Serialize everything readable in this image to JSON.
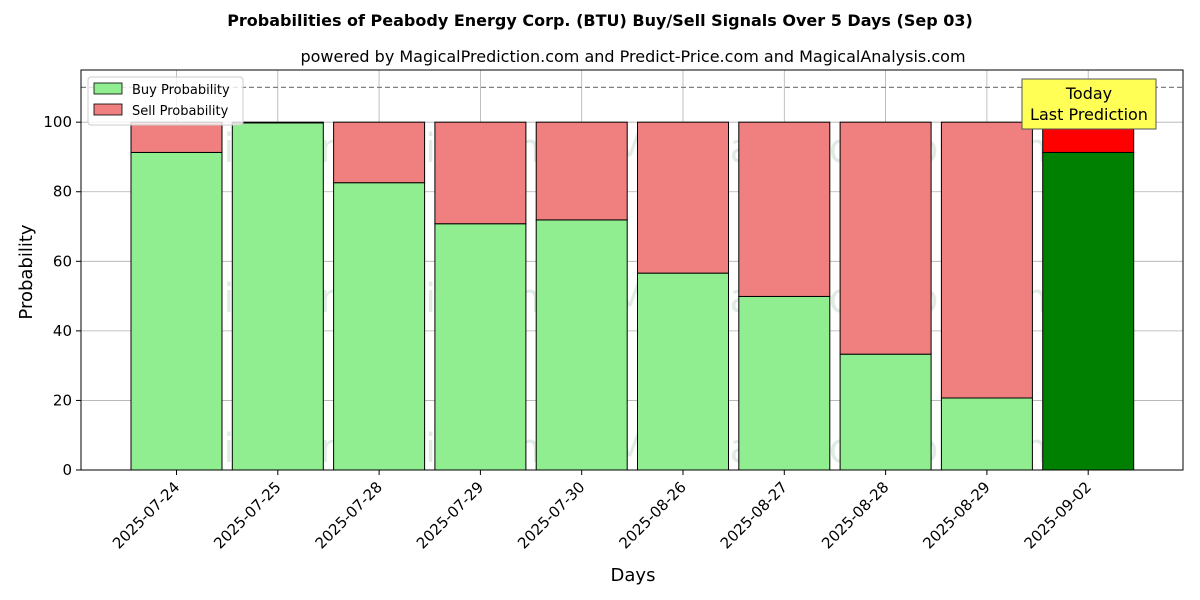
{
  "chart_data": {
    "type": "bar",
    "stacked": true,
    "title": "Probabilities of Peabody Energy Corp. (BTU) Buy/Sell Signals Over 5 Days (Sep 03)",
    "subtitle": "powered by MagicalPrediction.com and Predict-Price.com and MagicalAnalysis.com",
    "xlabel": "Days",
    "ylabel": "Probability",
    "ylim": [
      0,
      115
    ],
    "yticks": [
      0,
      20,
      40,
      60,
      80,
      100
    ],
    "grid": true,
    "legend_placement": "top-left",
    "categories": [
      "2025-07-24",
      "2025-07-25",
      "2025-07-28",
      "2025-07-29",
      "2025-07-30",
      "2025-08-26",
      "2025-08-27",
      "2025-08-28",
      "2025-08-29",
      "2025-09-02"
    ],
    "series": [
      {
        "name": "Buy Probability",
        "color": "#90ee90",
        "highlight_color": "#008000",
        "values": [
          91.3,
          99.8,
          82.6,
          70.8,
          71.9,
          56.6,
          49.9,
          33.3,
          20.7,
          91.3
        ]
      },
      {
        "name": "Sell Probability",
        "color": "#f08080",
        "highlight_color": "#ff0000",
        "values": [
          8.7,
          0.2,
          17.4,
          29.2,
          28.1,
          43.4,
          50.1,
          66.7,
          79.3,
          8.7
        ]
      }
    ],
    "highlight_index": 9,
    "reference_line": {
      "y": 110,
      "style": "dashed",
      "color": "#808080"
    },
    "annotation": {
      "lines": [
        "Today",
        "Last Prediction"
      ],
      "background": "#ffff55"
    },
    "watermarks": [
      "MagicalAnalysis.com",
      "MagicalPrediction.com"
    ]
  }
}
